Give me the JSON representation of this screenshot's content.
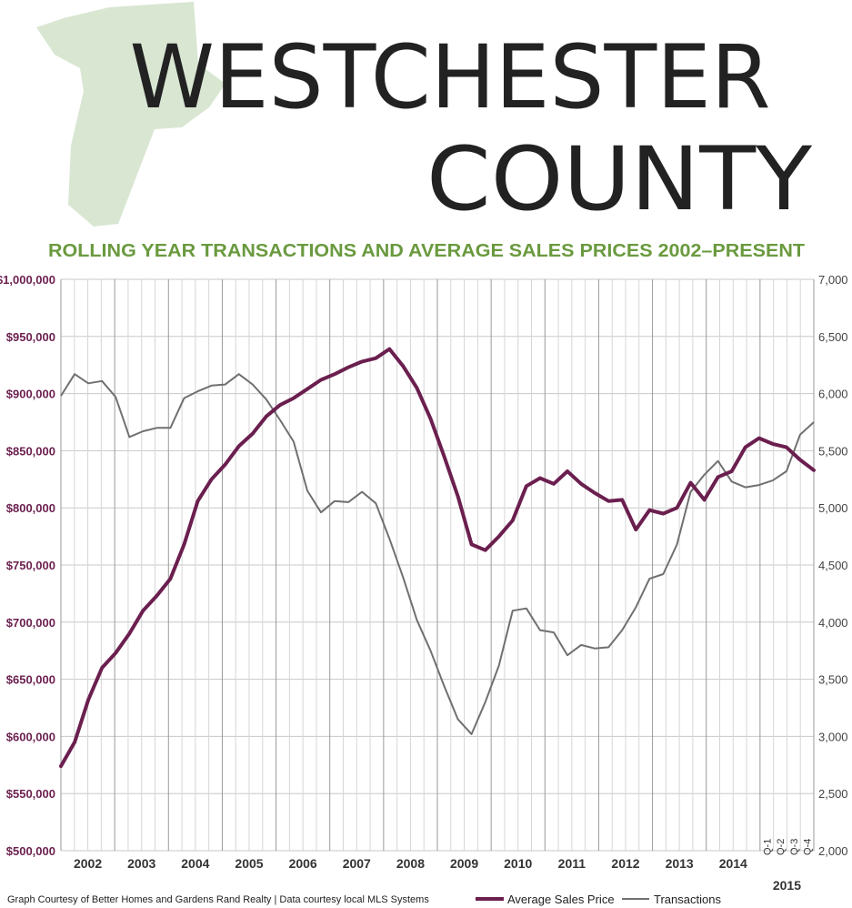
{
  "title": {
    "line1": "WESTCHESTER",
    "line2": "COUNTY"
  },
  "colors": {
    "map_fill": "#d9e6d2",
    "subtitle": "#6a9a3f",
    "price_line": "#6b1f4f",
    "transactions_line": "#707070",
    "grid": "#bdbdbd"
  },
  "icons": {
    "map": "westchester-county-map-icon"
  },
  "footer": {
    "credit": "Graph Courtesy of Better Homes and Gardens Rand Realty  |  Data courtesy local MLS Systems"
  },
  "chart_data": {
    "type": "line",
    "title": "ROLLING YEAR TRANSACTIONS AND AVERAGE SALES PRICES 2002–PRESENT",
    "grid": true,
    "legend_position": "bottom-right",
    "x_labels": [
      "2002",
      "2003",
      "2004",
      "2005",
      "2006",
      "2007",
      "2008",
      "2009",
      "2010",
      "2011",
      "2012",
      "2013",
      "2014"
    ],
    "x_quarter_labels": [
      "Q-1",
      "Q-2",
      "Q-3",
      "Q-4"
    ],
    "x_group_label": "2015",
    "y_left": {
      "ticks": [
        "$500,000",
        "$550,000",
        "$600,000",
        "$650,000",
        "$700,000",
        "$750,000",
        "$800,000",
        "$850,000",
        "$900,000",
        "$950,000",
        "$1,000,000"
      ],
      "ylim": [
        500000,
        1000000
      ]
    },
    "y_right": {
      "ticks": [
        "2,000",
        "2,500",
        "3,000",
        "3,500",
        "4,000",
        "4,500",
        "5,000",
        "5,500",
        "6,000",
        "6,500",
        "7,000"
      ],
      "ylim": [
        2000,
        7000
      ]
    },
    "series": [
      {
        "name": "Average Sales Price",
        "axis": "left",
        "values": [
          574000,
          595000,
          632000,
          660000,
          673000,
          690000,
          710000,
          723000,
          738000,
          768000,
          806000,
          825000,
          838000,
          854000,
          865000,
          880000,
          890000,
          896000,
          904000,
          912000,
          917000,
          923000,
          928000,
          931000,
          939000,
          924000,
          905000,
          878000,
          845000,
          810000,
          768000,
          763000,
          775000,
          789000,
          819000,
          826000,
          821000,
          832000,
          821000,
          813000,
          806000,
          807000,
          781000,
          798000,
          795000,
          800000,
          822000,
          807000,
          827000,
          832000,
          853000,
          861000,
          856000,
          853000,
          842000,
          833000
        ]
      },
      {
        "name": "Transactions",
        "axis": "right",
        "values": [
          5980,
          6170,
          6090,
          6110,
          5970,
          5620,
          5670,
          5700,
          5700,
          5960,
          6020,
          6070,
          6080,
          6170,
          6080,
          5950,
          5770,
          5580,
          5150,
          4960,
          5060,
          5050,
          5140,
          5040,
          4730,
          4390,
          4020,
          3750,
          3440,
          3150,
          3020,
          3300,
          3620,
          4100,
          4120,
          3930,
          3910,
          3710,
          3800,
          3770,
          3780,
          3930,
          4130,
          4380,
          4420,
          4680,
          5140,
          5290,
          5410,
          5230,
          5180,
          5200,
          5240,
          5320,
          5640,
          5750
        ]
      }
    ]
  }
}
